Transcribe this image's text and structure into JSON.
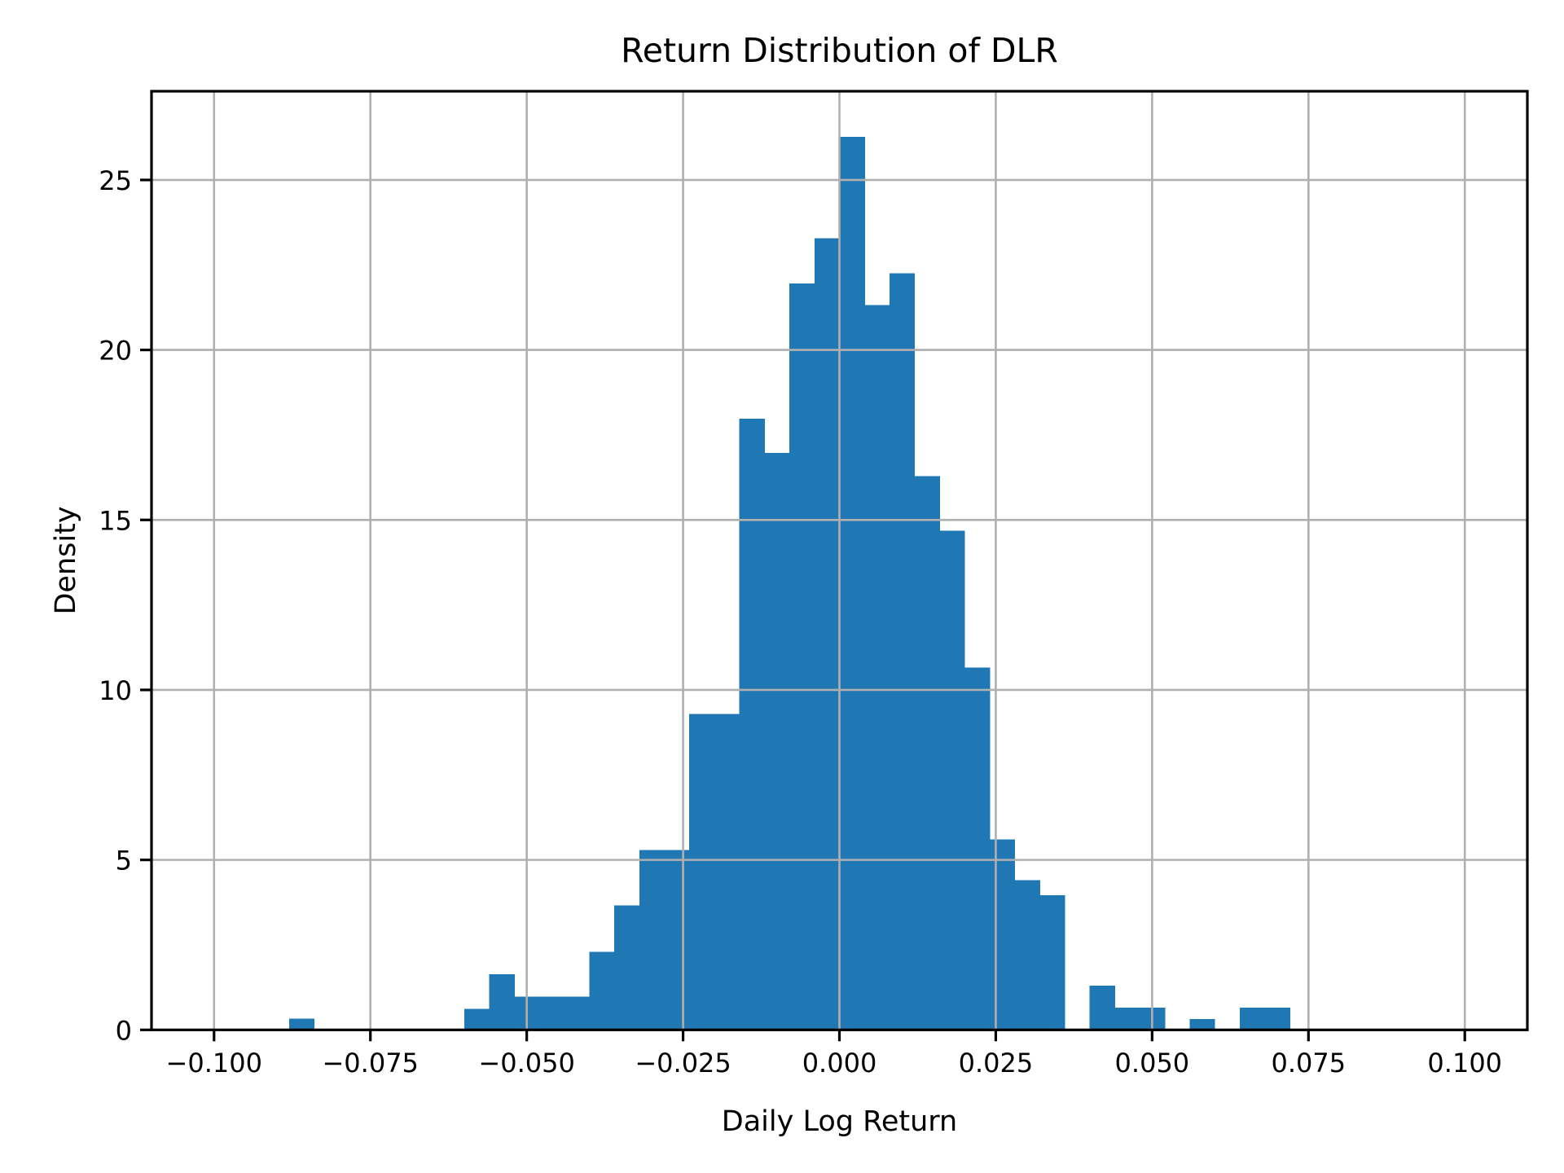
{
  "chart_data": {
    "type": "histogram",
    "title": "Return Distribution of DLR",
    "xlabel": "Daily Log Return",
    "ylabel": "Density",
    "grid": true,
    "legend": "none",
    "xlim": [
      -0.11,
      0.11
    ],
    "ylim": [
      0,
      27.61
    ],
    "bin_width": 0.004,
    "bin_edges": [
      -0.088,
      -0.084,
      -0.08,
      -0.076,
      -0.072,
      -0.068,
      -0.064,
      -0.06,
      -0.056,
      -0.052,
      -0.048,
      -0.044,
      -0.04,
      -0.036,
      -0.032,
      -0.028,
      -0.024,
      -0.02,
      -0.016,
      -0.012,
      -0.008,
      -0.004,
      0.0,
      0.004,
      0.008,
      0.012,
      0.016,
      0.02,
      0.024,
      0.028,
      0.032,
      0.036,
      0.04,
      0.044,
      0.048,
      0.052,
      0.056,
      0.06,
      0.064,
      0.068,
      0.072
    ],
    "densities": [
      0.33,
      0,
      0,
      0,
      0,
      0,
      0,
      0.62,
      1.64,
      0.98,
      0.98,
      0.98,
      2.3,
      3.66,
      5.29,
      5.29,
      9.29,
      9.29,
      17.98,
      16.97,
      21.95,
      23.28,
      26.27,
      21.32,
      22.26,
      16.29,
      14.68,
      10.66,
      5.6,
      4.4,
      3.96,
      0,
      1.3,
      0.66,
      0.66,
      0,
      0.32,
      0,
      0.66,
      0.66
    ],
    "xticks": {
      "values": [
        -0.1,
        -0.075,
        -0.05,
        -0.025,
        0.0,
        0.025,
        0.05,
        0.075,
        0.1
      ],
      "labels": [
        "−0.100",
        "−0.075",
        "−0.050",
        "−0.025",
        "0.000",
        "0.025",
        "0.050",
        "0.075",
        "0.100"
      ]
    },
    "yticks": {
      "values": [
        0,
        5,
        10,
        15,
        20,
        25
      ],
      "labels": [
        "0",
        "5",
        "10",
        "15",
        "20",
        "25"
      ]
    },
    "colors": {
      "bar": "#1f77b4",
      "grid": "#b0b0b0",
      "spine": "#000000",
      "background": "#ffffff",
      "text": "#000000"
    }
  }
}
